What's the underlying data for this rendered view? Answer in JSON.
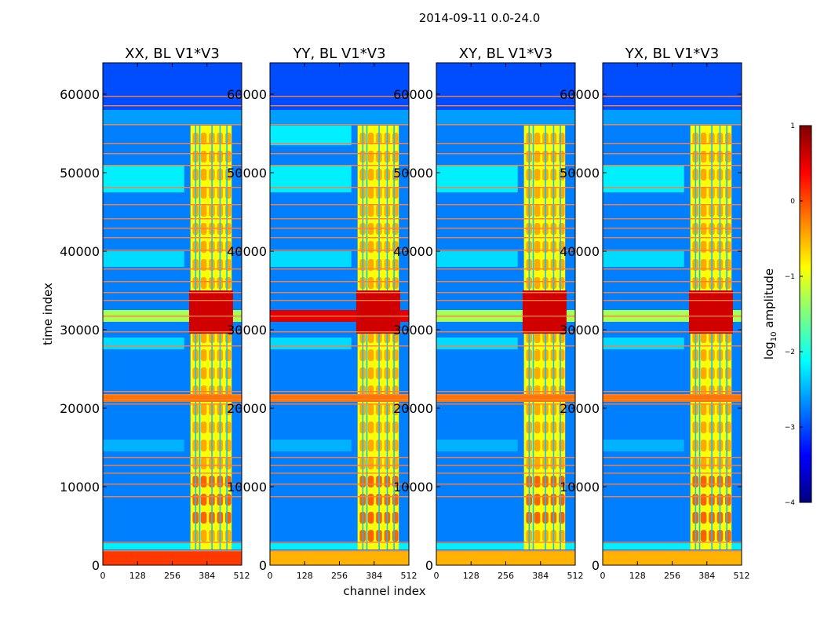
{
  "figure": {
    "suptitle": "2014-09-11 0.0-24.0",
    "xlabel": "channel index",
    "ylabel": "time index"
  },
  "chart_data": [
    {
      "type": "heatmap",
      "title": "XX, BL V1*V3",
      "xlim": [
        0,
        512
      ],
      "ylim": [
        0,
        64000
      ],
      "xticks": [
        "0",
        "128",
        "256",
        "384",
        "512"
      ],
      "yticks": [
        "0",
        "10000",
        "20000",
        "30000",
        "40000",
        "50000",
        "60000"
      ]
    },
    {
      "type": "heatmap",
      "title": "YY, BL V1*V3",
      "xlim": [
        0,
        512
      ],
      "ylim": [
        0,
        64000
      ],
      "xticks": [
        "0",
        "128",
        "256",
        "384",
        "512"
      ],
      "yticks": [
        "0",
        "10000",
        "20000",
        "30000",
        "40000",
        "50000",
        "60000"
      ]
    },
    {
      "type": "heatmap",
      "title": "XY, BL V1*V3",
      "xlim": [
        0,
        512
      ],
      "ylim": [
        0,
        64000
      ],
      "xticks": [
        "0",
        "128",
        "256",
        "384",
        "512"
      ],
      "yticks": [
        "0",
        "10000",
        "20000",
        "30000",
        "40000",
        "50000",
        "60000"
      ]
    },
    {
      "type": "heatmap",
      "title": "YX, BL V1*V3",
      "xlim": [
        0,
        512
      ],
      "ylim": [
        0,
        64000
      ],
      "xticks": [
        "0",
        "128",
        "256",
        "384",
        "512"
      ],
      "yticks": [
        "0",
        "10000",
        "20000",
        "30000",
        "40000",
        "50000",
        "60000"
      ]
    }
  ],
  "colorbar": {
    "label_prefix": "log",
    "label_sub": "10",
    "label_suffix": " amplitude",
    "range": [
      -4,
      1
    ],
    "ticks": [
      "1",
      "0",
      "−1",
      "−2",
      "−3",
      "−4"
    ],
    "colors": [
      "#00007f",
      "#0000ff",
      "#007fff",
      "#00ffff",
      "#7fff7f",
      "#ffff00",
      "#ff7f00",
      "#ff0000",
      "#7f0000"
    ]
  }
}
